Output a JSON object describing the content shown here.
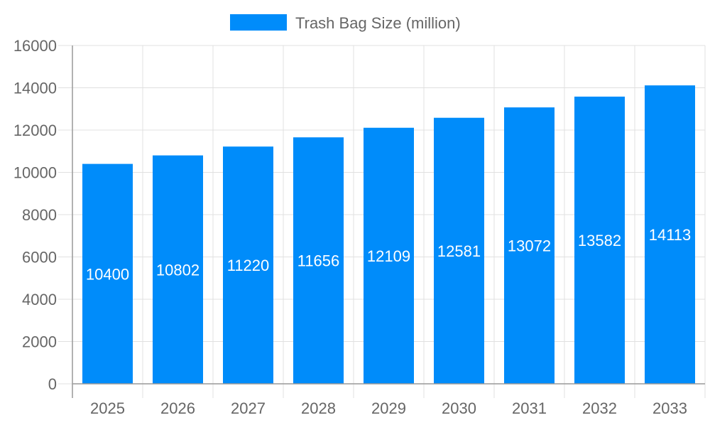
{
  "chart_data": {
    "type": "bar",
    "title": "",
    "xlabel": "",
    "ylabel": "",
    "categories": [
      "2025",
      "2026",
      "2027",
      "2028",
      "2029",
      "2030",
      "2031",
      "2032",
      "2033"
    ],
    "series": [
      {
        "name": "Trash Bag Size (million)",
        "values": [
          10400,
          10802,
          11220,
          11656,
          12109,
          12581,
          13072,
          13582,
          14113
        ],
        "color": "#008cfa"
      }
    ],
    "ylim": [
      0,
      16000
    ],
    "yticks": [
      "0",
      "2000",
      "4000",
      "6000",
      "8000",
      "10000",
      "12000",
      "14000",
      "16000"
    ],
    "grid": true,
    "legend": "top-center",
    "data_labels": true
  }
}
